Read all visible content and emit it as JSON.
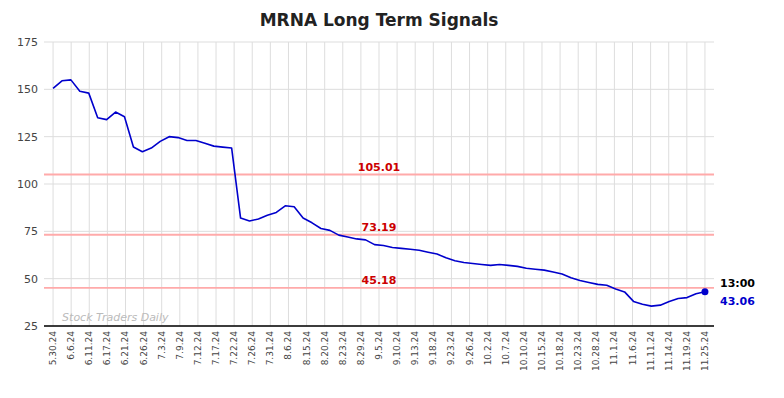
{
  "chart_data": {
    "type": "line",
    "title": "MRNA Long Term Signals",
    "series": [
      {
        "color": "#0000cc",
        "marker": "last",
        "values": [
          150.5,
          154.5,
          155.0,
          149.0,
          148.0,
          135.0,
          134.0,
          138.0,
          135.5,
          119.5,
          117.0,
          119.0,
          122.5,
          125.0,
          124.5,
          123.0,
          123.0,
          121.5,
          120.0,
          119.5,
          119.0,
          82.0,
          80.5,
          81.5,
          83.5,
          85.0,
          88.5,
          88.0,
          82.0,
          79.5,
          76.5,
          75.5,
          73.0,
          72.0,
          71.0,
          70.5,
          68.0,
          67.5,
          66.5,
          66.0,
          65.5,
          65.0,
          64.0,
          63.0,
          61.0,
          59.5,
          58.5,
          58.0,
          57.5,
          57.0,
          57.5,
          57.0,
          56.5,
          55.5,
          55.0,
          54.5,
          53.5,
          52.5,
          50.5,
          49.0,
          48.0,
          47.0,
          46.5,
          44.5,
          43.0,
          38.0,
          36.5,
          35.5,
          36.0,
          38.0,
          39.5,
          40.0,
          42.0,
          43.06
        ]
      }
    ],
    "reference_lines": [
      {
        "value": 105.01,
        "label": "105.01",
        "color": "#ffaaaa"
      },
      {
        "value": 73.19,
        "label": "73.19",
        "color": "#ffaaaa"
      },
      {
        "value": 45.18,
        "label": "45.18",
        "color": "#ffaaaa"
      }
    ],
    "annotations": [
      {
        "text": "13:00",
        "y": 43.06
      },
      {
        "text": "43.06",
        "y": 43.06
      },
      {
        "text": "Stock Traders Daily",
        "x": 0.5,
        "y": 27.5
      }
    ],
    "xlim": [
      -0.5,
      36.5
    ],
    "xticks": [
      {
        "value": 0,
        "label": "5.30.24"
      },
      {
        "value": 1,
        "label": "6.6.24"
      },
      {
        "value": 2,
        "label": "6.11.24"
      },
      {
        "value": 3,
        "label": "6.17.24"
      },
      {
        "value": 4,
        "label": "6.21.24"
      },
      {
        "value": 5,
        "label": "6.26.24"
      },
      {
        "value": 6,
        "label": "7.3.24"
      },
      {
        "value": 7,
        "label": "7.9.24"
      },
      {
        "value": 8,
        "label": "7.12.24"
      },
      {
        "value": 9,
        "label": "7.17.24"
      },
      {
        "value": 10,
        "label": "7.22.24"
      },
      {
        "value": 11,
        "label": "7.26.24"
      },
      {
        "value": 12,
        "label": "7.31.24"
      },
      {
        "value": 13,
        "label": "8.6.24"
      },
      {
        "value": 14,
        "label": "8.15.24"
      },
      {
        "value": 15,
        "label": "8.20.24"
      },
      {
        "value": 16,
        "label": "8.23.24"
      },
      {
        "value": 17,
        "label": "8.29.24"
      },
      {
        "value": 18,
        "label": "9.5.24"
      },
      {
        "value": 19,
        "label": "9.10.24"
      },
      {
        "value": 20,
        "label": "9.13.24"
      },
      {
        "value": 21,
        "label": "9.18.24"
      },
      {
        "value": 22,
        "label": "9.23.24"
      },
      {
        "value": 23,
        "label": "9.26.24"
      },
      {
        "value": 24,
        "label": "10.2.24"
      },
      {
        "value": 25,
        "label": "10.7.24"
      },
      {
        "value": 26,
        "label": "10.10.24"
      },
      {
        "value": 27,
        "label": "10.15.24"
      },
      {
        "value": 28,
        "label": "10.18.24"
      },
      {
        "value": 29,
        "label": "10.23.24"
      },
      {
        "value": 30,
        "label": "10.28.24"
      },
      {
        "value": 31,
        "label": "11.1.24"
      },
      {
        "value": 32,
        "label": "11.6.24"
      },
      {
        "value": 33,
        "label": "11.11.24"
      },
      {
        "value": 34,
        "label": "11.14.24"
      },
      {
        "value": 35,
        "label": "11.19.24"
      },
      {
        "value": 36,
        "label": "11.25.24"
      }
    ],
    "ylim": [
      25,
      175
    ],
    "yticks": [
      25,
      50,
      75,
      100,
      125,
      150,
      175
    ],
    "grid": true
  }
}
